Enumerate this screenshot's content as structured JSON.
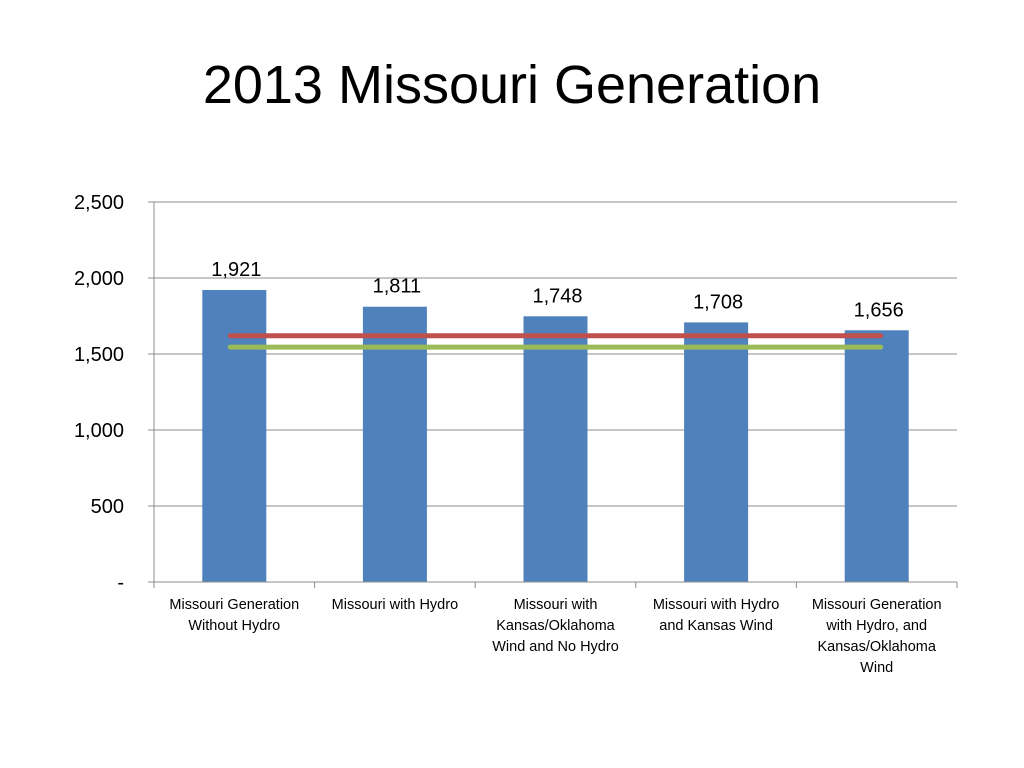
{
  "slide": {
    "title": "2013 Missouri Generation"
  },
  "colors": {
    "bar": "#4F81BD",
    "line_red": "#C0504D",
    "line_green": "#9BBB59",
    "grid": "#8c8c8c",
    "axis": "#8c8c8c",
    "text": "#000000"
  },
  "chart_data": {
    "type": "bar",
    "title": "2013 Missouri Generation",
    "xlabel": "",
    "ylabel": "",
    "ylim": [
      0,
      2500
    ],
    "yticks": [
      0,
      500,
      1000,
      1500,
      2000,
      2500
    ],
    "ytick_labels": [
      "-",
      "500",
      "1,000",
      "1,500",
      "2,000",
      "2,500"
    ],
    "grid": true,
    "categories": [
      [
        "Missouri Generation",
        "Without Hydro"
      ],
      [
        "Missouri with Hydro"
      ],
      [
        "Missouri with",
        "Kansas/Oklahoma",
        "Wind and No Hydro"
      ],
      [
        "Missouri with Hydro",
        "and Kansas Wind"
      ],
      [
        "Missouri Generation",
        "with Hydro, and",
        "Kansas/Oklahoma",
        "Wind"
      ]
    ],
    "values": [
      1921,
      1811,
      1748,
      1708,
      1656
    ],
    "data_labels": [
      "1,921",
      "1,811",
      "1,748",
      "1,708",
      "1,656"
    ],
    "reference_lines": [
      {
        "color": "#C0504D",
        "value": 1620
      },
      {
        "color": "#9BBB59",
        "value": 1545
      }
    ]
  }
}
